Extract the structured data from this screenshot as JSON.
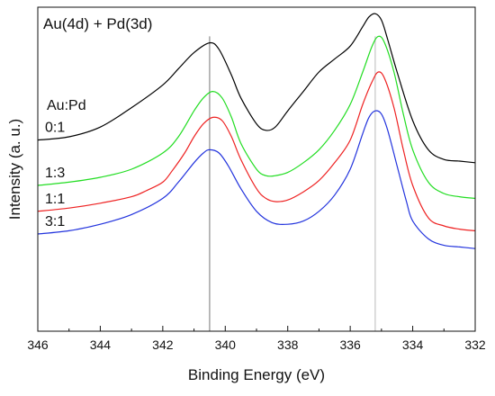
{
  "chart_data": {
    "type": "line",
    "title": "Au(4d) + Pd(3d)",
    "xlabel": "Binding Energy (eV)",
    "ylabel": "Intensity (a. u.)",
    "xlim": [
      346,
      332
    ],
    "x_reversed": true,
    "ylim": [
      0,
      10
    ],
    "x_ticks": [
      346,
      344,
      342,
      340,
      338,
      336,
      334,
      332
    ],
    "y_ticks_labeled": false,
    "grid": false,
    "legend_title": "Au:Pd",
    "reference_lines": [
      340.5,
      335.2
    ],
    "series": [
      {
        "name": "0:1",
        "color": "#000000",
        "x": [
          346,
          345,
          344,
          343,
          342,
          341.5,
          341,
          340.5,
          340.2,
          339.8,
          339.5,
          339,
          338.7,
          338.4,
          338,
          337.5,
          337,
          336.5,
          336,
          335.6,
          335.4,
          335.2,
          335,
          334.8,
          334.5,
          334,
          333.5,
          333,
          332.5,
          332
        ],
        "y": [
          5.9,
          6.0,
          6.3,
          6.9,
          7.6,
          8.1,
          8.6,
          8.9,
          8.7,
          7.9,
          7.2,
          6.4,
          6.2,
          6.3,
          6.8,
          7.4,
          8.0,
          8.4,
          8.8,
          9.4,
          9.7,
          9.8,
          9.6,
          9.0,
          8.0,
          6.5,
          5.6,
          5.3,
          5.25,
          5.2
        ]
      },
      {
        "name": "1:3",
        "color": "#22dd22",
        "x": [
          346,
          345,
          344,
          343,
          342,
          341.5,
          341,
          340.7,
          340.4,
          340.1,
          339.8,
          339.5,
          339,
          338.7,
          338.4,
          338,
          337.5,
          337,
          336.5,
          336,
          335.6,
          335.3,
          335.1,
          334.9,
          334.6,
          334.3,
          334,
          333.5,
          333,
          332.5,
          332
        ],
        "y": [
          4.5,
          4.6,
          4.75,
          5.0,
          5.5,
          6.0,
          6.8,
          7.2,
          7.4,
          7.2,
          6.6,
          5.8,
          5.0,
          4.8,
          4.8,
          4.9,
          5.2,
          5.6,
          6.2,
          7.0,
          8.0,
          8.8,
          9.1,
          8.9,
          8.0,
          6.7,
          5.6,
          4.6,
          4.25,
          4.15,
          4.1
        ]
      },
      {
        "name": "1:1",
        "color": "#ee2222",
        "x": [
          346,
          345,
          344,
          343,
          342.5,
          342,
          341.7,
          341.3,
          341,
          340.7,
          340.4,
          340.1,
          339.8,
          339.5,
          339,
          338.7,
          338.4,
          338,
          337.5,
          337,
          336.5,
          336,
          335.6,
          335.3,
          335.1,
          334.9,
          334.6,
          334.3,
          334,
          333.5,
          333,
          332.5,
          332
        ],
        "y": [
          3.7,
          3.8,
          3.95,
          4.15,
          4.35,
          4.6,
          4.95,
          5.5,
          6.0,
          6.4,
          6.6,
          6.5,
          6.0,
          5.3,
          4.4,
          4.1,
          4.0,
          4.05,
          4.3,
          4.65,
          5.2,
          5.9,
          7.0,
          7.7,
          8.0,
          7.8,
          6.9,
          5.6,
          4.5,
          3.5,
          3.25,
          3.15,
          3.1
        ]
      },
      {
        "name": "3:1",
        "color": "#2233dd",
        "x": [
          346,
          345,
          344,
          343,
          342,
          341.5,
          341,
          340.7,
          340.5,
          340.2,
          339.9,
          339.5,
          339,
          338.5,
          338,
          337.5,
          337,
          336.5,
          336,
          335.6,
          335.4,
          335.2,
          335,
          334.8,
          334.5,
          334.2,
          334,
          333.5,
          333,
          332.5,
          332
        ],
        "y": [
          3.0,
          3.1,
          3.3,
          3.6,
          4.1,
          4.6,
          5.2,
          5.5,
          5.6,
          5.5,
          5.1,
          4.4,
          3.7,
          3.35,
          3.3,
          3.4,
          3.7,
          4.2,
          5.0,
          6.1,
          6.6,
          6.8,
          6.7,
          6.2,
          5.1,
          4.0,
          3.4,
          2.85,
          2.65,
          2.6,
          2.55
        ]
      }
    ]
  }
}
